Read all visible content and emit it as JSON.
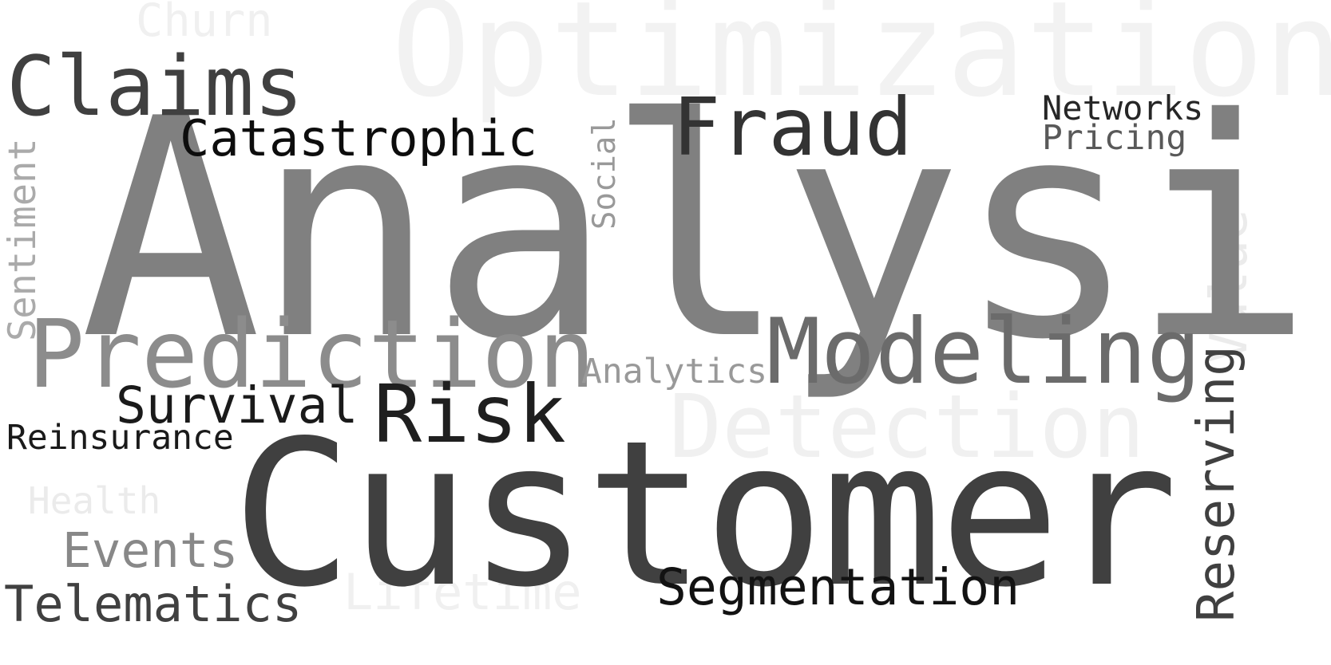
{
  "words": [
    {
      "id": "analysis",
      "text": "Analysis",
      "color": "#808080",
      "vertical": false
    },
    {
      "id": "customer",
      "text": "Customer",
      "color": "#404040",
      "vertical": false
    },
    {
      "id": "optimization",
      "text": "Optimization",
      "color": "#f2f2f2",
      "vertical": false
    },
    {
      "id": "prediction",
      "text": "Prediction",
      "color": "#8c8c8c",
      "vertical": false
    },
    {
      "id": "modeling",
      "text": "Modeling",
      "color": "#6b6b6b",
      "vertical": false
    },
    {
      "id": "detection",
      "text": "Detection",
      "color": "#f0f0f0",
      "vertical": false
    },
    {
      "id": "claims",
      "text": "Claims",
      "color": "#404040",
      "vertical": false
    },
    {
      "id": "fraud",
      "text": "Fraud",
      "color": "#333333",
      "vertical": false
    },
    {
      "id": "risk",
      "text": "Risk",
      "color": "#1f1f1f",
      "vertical": false
    },
    {
      "id": "reserving",
      "text": "Reserving",
      "color": "#404040",
      "vertical": true
    },
    {
      "id": "value",
      "text": "Value",
      "color": "#ebebeb",
      "vertical": true
    },
    {
      "id": "catastrophic",
      "text": "Catastrophic",
      "color": "#0d0d0d",
      "vertical": false
    },
    {
      "id": "survival",
      "text": "Survival",
      "color": "#1a1a1a",
      "vertical": false
    },
    {
      "id": "segmentation",
      "text": "Segmentation",
      "color": "#121212",
      "vertical": false
    },
    {
      "id": "telematics",
      "text": "Telematics",
      "color": "#404040",
      "vertical": false
    },
    {
      "id": "lifetime",
      "text": "Lifetime",
      "color": "#f0f0f0",
      "vertical": false
    },
    {
      "id": "events",
      "text": "Events",
      "color": "#888888",
      "vertical": false
    },
    {
      "id": "churn",
      "text": "Churn",
      "color": "#f0f0f0",
      "vertical": false
    },
    {
      "id": "sentiment",
      "text": "Sentiment",
      "color": "#aaaaaa",
      "vertical": true
    },
    {
      "id": "health",
      "text": "Health",
      "color": "#ebebeb",
      "vertical": false
    },
    {
      "id": "networks",
      "text": "Networks",
      "color": "#262626",
      "vertical": false
    },
    {
      "id": "pricing",
      "text": "Pricing",
      "color": "#595959",
      "vertical": false
    },
    {
      "id": "reinsurance",
      "text": "Reinsurance",
      "color": "#1a1a1a",
      "vertical": false
    },
    {
      "id": "analytics",
      "text": "Analytics",
      "color": "#999999",
      "vertical": false
    },
    {
      "id": "social",
      "text": "Social",
      "color": "#999999",
      "vertical": true
    }
  ]
}
